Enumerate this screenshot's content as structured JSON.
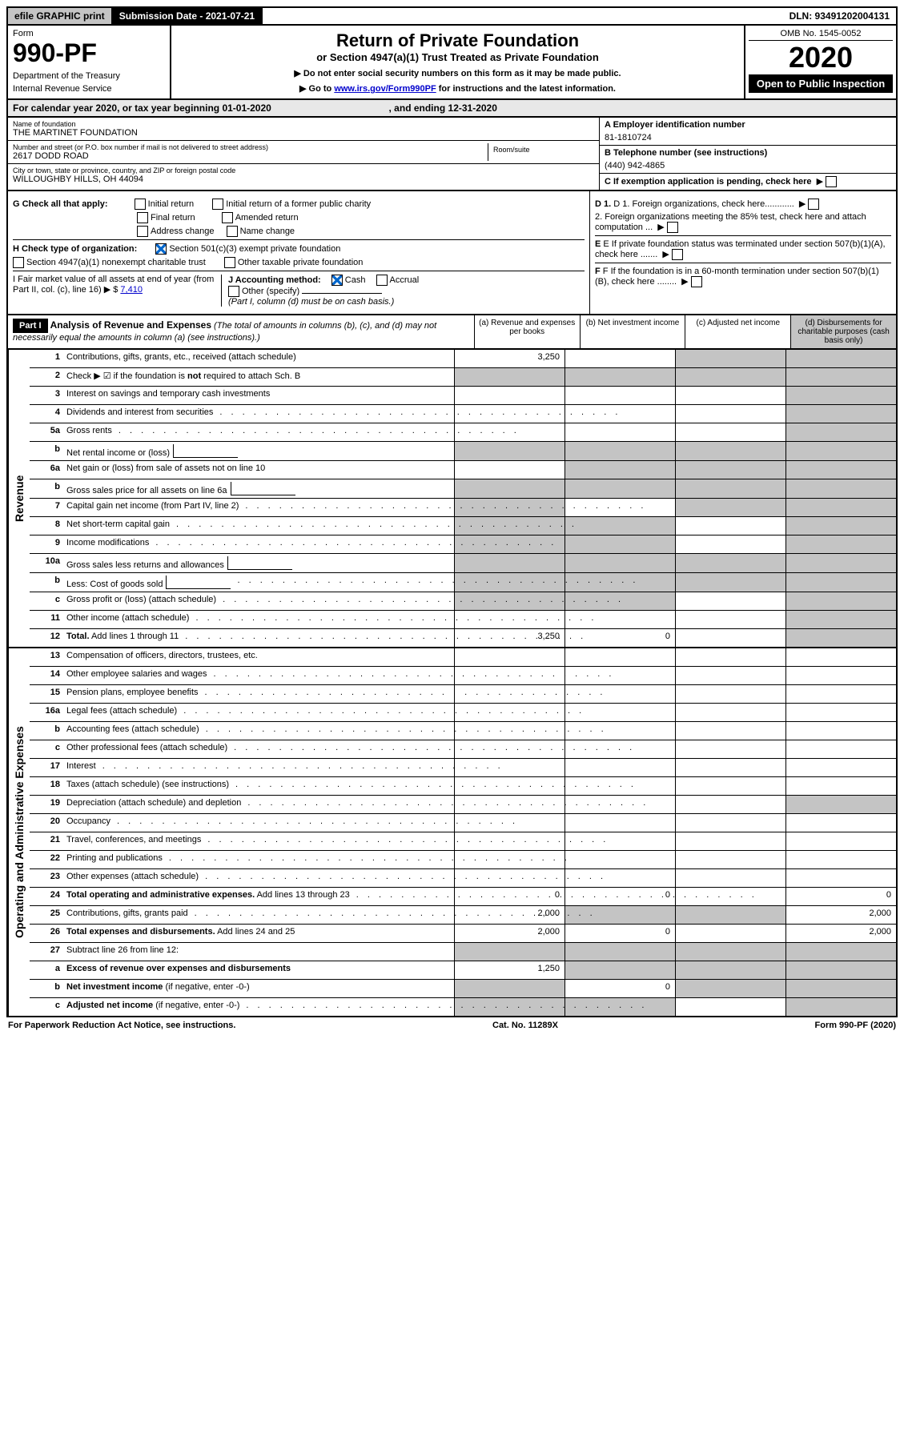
{
  "top": {
    "efile": "efile GRAPHIC print",
    "sub_label": "Submission Date - 2021-07-21",
    "dln": "DLN: 93491202004131"
  },
  "header": {
    "form_label": "Form",
    "form_no": "990-PF",
    "dept1": "Department of the Treasury",
    "dept2": "Internal Revenue Service",
    "title": "Return of Private Foundation",
    "subtitle": "or Section 4947(a)(1) Trust Treated as Private Foundation",
    "note1": "▶ Do not enter social security numbers on this form as it may be made public.",
    "note2_pre": "▶ Go to ",
    "note2_link": "www.irs.gov/Form990PF",
    "note2_post": " for instructions and the latest information.",
    "omb": "OMB No. 1545-0052",
    "year": "2020",
    "open": "Open to Public Inspection"
  },
  "cal": {
    "text_a": "For calendar year 2020, or tax year beginning 01-01-2020",
    "text_b": ", and ending 12-31-2020"
  },
  "entity": {
    "name_label": "Name of foundation",
    "name": "THE MARTINET FOUNDATION",
    "addr_label": "Number and street (or P.O. box number if mail is not delivered to street address)",
    "addr": "2617 DODD ROAD",
    "room_label": "Room/suite",
    "city_label": "City or town, state or province, country, and ZIP or foreign postal code",
    "city": "WILLOUGHBY HILLS, OH  44094",
    "ein_label": "A Employer identification number",
    "ein": "81-1810724",
    "tel_label": "B Telephone number (see instructions)",
    "tel": "(440) 942-4865",
    "c_label": "C If exemption application is pending, check here"
  },
  "checks": {
    "g_label": "G Check all that apply:",
    "g1": "Initial return",
    "g2": "Initial return of a former public charity",
    "g3": "Final return",
    "g4": "Amended return",
    "g5": "Address change",
    "g6": "Name change",
    "h_label": "H Check type of organization:",
    "h1": "Section 501(c)(3) exempt private foundation",
    "h2": "Section 4947(a)(1) nonexempt charitable trust",
    "h3": "Other taxable private foundation",
    "i_label": "I Fair market value of all assets at end of year (from Part II, col. (c), line 16) ▶ $",
    "i_val": "7,410",
    "j_label": "J Accounting method:",
    "j1": "Cash",
    "j2": "Accrual",
    "j3": "Other (specify)",
    "j_note": "(Part I, column (d) must be on cash basis.)",
    "d1": "D 1. Foreign organizations, check here............",
    "d2": "2. Foreign organizations meeting the 85% test, check here and attach computation ...",
    "e": "E If private foundation status was terminated under section 507(b)(1)(A), check here .......",
    "f": "F If the foundation is in a 60-month termination under section 507(b)(1)(B), check here ........"
  },
  "part1": {
    "label": "Part I",
    "title": "Analysis of Revenue and Expenses",
    "title_note": " (The total of amounts in columns (b), (c), and (d) may not necessarily equal the amounts in column (a) (see instructions).)",
    "col_a": "(a) Revenue and expenses per books",
    "col_b": "(b) Net investment income",
    "col_c": "(c) Adjusted net income",
    "col_d": "(d) Disbursements for charitable purposes (cash basis only)"
  },
  "sections": {
    "revenue": "Revenue",
    "expenses": "Operating and Administrative Expenses"
  },
  "rows": [
    {
      "n": "1",
      "d": "Contributions, gifts, grants, etc., received (attach schedule)",
      "a": "3,250",
      "b": "",
      "c": "s",
      "dd": "s"
    },
    {
      "n": "2",
      "d": "Check ▶ ☑ if the foundation is <b>not</b> required to attach Sch. B",
      "dots": false,
      "a": "s",
      "b": "s",
      "c": "s",
      "dd": "s"
    },
    {
      "n": "3",
      "d": "Interest on savings and temporary cash investments",
      "a": "",
      "b": "",
      "c": "",
      "dd": "s"
    },
    {
      "n": "4",
      "d": "Dividends and interest from securities",
      "dots": true,
      "a": "",
      "b": "",
      "c": "",
      "dd": "s"
    },
    {
      "n": "5a",
      "d": "Gross rents",
      "dots": true,
      "a": "",
      "b": "",
      "c": "",
      "dd": "s"
    },
    {
      "n": "b",
      "d": "Net rental income or (loss)",
      "inline": true,
      "a": "s",
      "b": "s",
      "c": "s",
      "dd": "s"
    },
    {
      "n": "6a",
      "d": "Net gain or (loss) from sale of assets not on line 10",
      "a": "",
      "b": "s",
      "c": "s",
      "dd": "s"
    },
    {
      "n": "b",
      "d": "Gross sales price for all assets on line 6a",
      "inline": true,
      "a": "s",
      "b": "s",
      "c": "s",
      "dd": "s"
    },
    {
      "n": "7",
      "d": "Capital gain net income (from Part IV, line 2)",
      "dots": true,
      "a": "s",
      "b": "",
      "c": "s",
      "dd": "s"
    },
    {
      "n": "8",
      "d": "Net short-term capital gain",
      "dots": true,
      "a": "s",
      "b": "s",
      "c": "",
      "dd": "s"
    },
    {
      "n": "9",
      "d": "Income modifications",
      "dots": true,
      "a": "s",
      "b": "s",
      "c": "",
      "dd": "s"
    },
    {
      "n": "10a",
      "d": "Gross sales less returns and allowances",
      "inline": true,
      "a": "s",
      "b": "s",
      "c": "s",
      "dd": "s"
    },
    {
      "n": "b",
      "d": "Less: Cost of goods sold",
      "dots": true,
      "inline": true,
      "a": "s",
      "b": "s",
      "c": "s",
      "dd": "s"
    },
    {
      "n": "c",
      "d": "Gross profit or (loss) (attach schedule)",
      "dots": true,
      "a": "s",
      "b": "s",
      "c": "",
      "dd": "s"
    },
    {
      "n": "11",
      "d": "Other income (attach schedule)",
      "dots": true,
      "a": "",
      "b": "",
      "c": "",
      "dd": "s"
    },
    {
      "n": "12",
      "d": "<b>Total.</b> Add lines 1 through 11",
      "dots": true,
      "a": "3,250",
      "b": "0",
      "c": "",
      "dd": "s"
    }
  ],
  "exp_rows": [
    {
      "n": "13",
      "d": "Compensation of officers, directors, trustees, etc.",
      "a": "",
      "b": "",
      "c": "",
      "dd": ""
    },
    {
      "n": "14",
      "d": "Other employee salaries and wages",
      "dots": true,
      "a": "",
      "b": "",
      "c": "",
      "dd": ""
    },
    {
      "n": "15",
      "d": "Pension plans, employee benefits",
      "dots": true,
      "a": "",
      "b": "",
      "c": "",
      "dd": ""
    },
    {
      "n": "16a",
      "d": "Legal fees (attach schedule)",
      "dots": true,
      "a": "",
      "b": "",
      "c": "",
      "dd": ""
    },
    {
      "n": "b",
      "d": "Accounting fees (attach schedule)",
      "dots": true,
      "a": "",
      "b": "",
      "c": "",
      "dd": ""
    },
    {
      "n": "c",
      "d": "Other professional fees (attach schedule)",
      "dots": true,
      "a": "",
      "b": "",
      "c": "",
      "dd": ""
    },
    {
      "n": "17",
      "d": "Interest",
      "dots": true,
      "a": "",
      "b": "",
      "c": "",
      "dd": ""
    },
    {
      "n": "18",
      "d": "Taxes (attach schedule) (see instructions)",
      "dots": true,
      "a": "",
      "b": "",
      "c": "",
      "dd": ""
    },
    {
      "n": "19",
      "d": "Depreciation (attach schedule) and depletion",
      "dots": true,
      "a": "",
      "b": "",
      "c": "",
      "dd": "s"
    },
    {
      "n": "20",
      "d": "Occupancy",
      "dots": true,
      "a": "",
      "b": "",
      "c": "",
      "dd": ""
    },
    {
      "n": "21",
      "d": "Travel, conferences, and meetings",
      "dots": true,
      "a": "",
      "b": "",
      "c": "",
      "dd": ""
    },
    {
      "n": "22",
      "d": "Printing and publications",
      "dots": true,
      "a": "",
      "b": "",
      "c": "",
      "dd": ""
    },
    {
      "n": "23",
      "d": "Other expenses (attach schedule)",
      "dots": true,
      "a": "",
      "b": "",
      "c": "",
      "dd": ""
    },
    {
      "n": "24",
      "d": "<b>Total operating and administrative expenses.</b> Add lines 13 through 23",
      "dots": true,
      "a": "0",
      "b": "0",
      "c": "",
      "dd": "0"
    },
    {
      "n": "25",
      "d": "Contributions, gifts, grants paid",
      "dots": true,
      "a": "2,000",
      "b": "s",
      "c": "s",
      "dd": "2,000"
    },
    {
      "n": "26",
      "d": "<b>Total expenses and disbursements.</b> Add lines 24 and 25",
      "a": "2,000",
      "b": "0",
      "c": "",
      "dd": "2,000"
    },
    {
      "n": "27",
      "d": "Subtract line 26 from line 12:",
      "a": "s",
      "b": "s",
      "c": "s",
      "dd": "s"
    },
    {
      "n": "a",
      "d": "<b>Excess of revenue over expenses and disbursements</b>",
      "a": "1,250",
      "b": "s",
      "c": "s",
      "dd": "s"
    },
    {
      "n": "b",
      "d": "<b>Net investment income</b> (if negative, enter -0-)",
      "a": "s",
      "b": "0",
      "c": "s",
      "dd": "s"
    },
    {
      "n": "c",
      "d": "<b>Adjusted net income</b> (if negative, enter -0-)",
      "dots": true,
      "a": "s",
      "b": "s",
      "c": "",
      "dd": "s"
    }
  ],
  "footer": {
    "left": "For Paperwork Reduction Act Notice, see instructions.",
    "mid": "Cat. No. 11289X",
    "right": "Form 990-PF (2020)"
  }
}
